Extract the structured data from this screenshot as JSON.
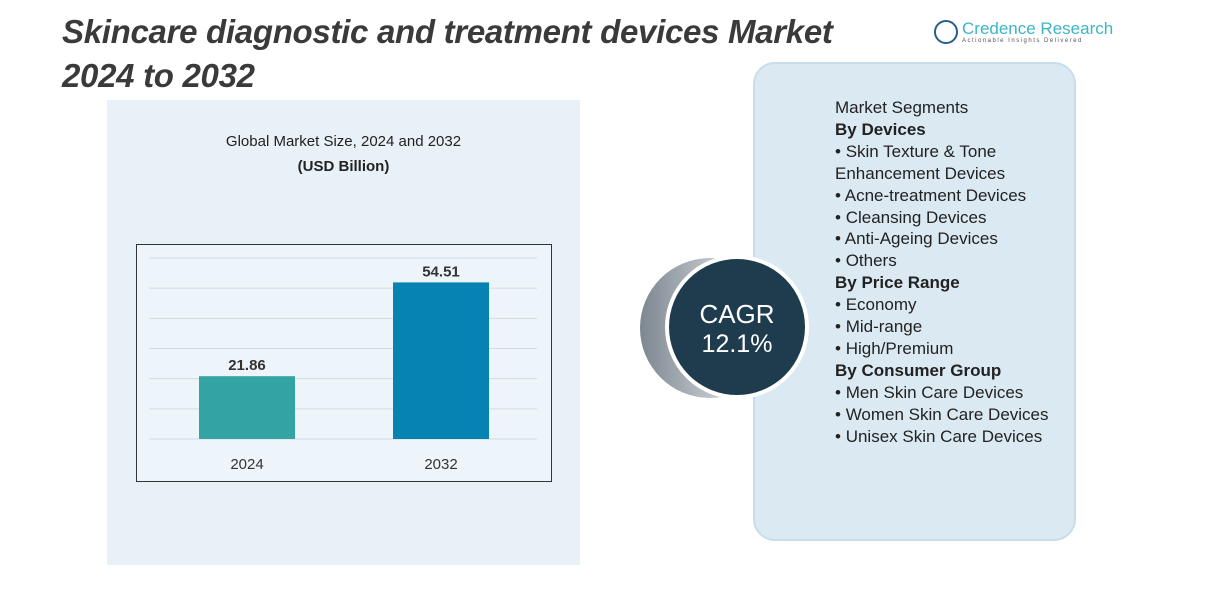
{
  "title": [
    "Skincare diagnostic and treatment devices Market",
    "2024 to 2032"
  ],
  "logo": {
    "name": "Credence Research",
    "tagline": "Actionable Insights Delivered"
  },
  "chart_data": {
    "type": "bar",
    "title": "Global Market Size, 2024 and 2032",
    "subtitle": "(USD Billion)",
    "categories": [
      "2024",
      "2032"
    ],
    "values": [
      21.86,
      54.51
    ],
    "colors": [
      "#33a3a3",
      "#0683b3"
    ],
    "ylim": [
      0,
      63
    ],
    "grid": true
  },
  "cagr": {
    "label": "CAGR",
    "value": "12.1%"
  },
  "segments": {
    "heading": "Market Segments",
    "groups": [
      {
        "title": "By Devices",
        "items": [
          "Skin Texture & Tone Enhancement Devices",
          "Acne-treatment Devices",
          "Cleansing Devices",
          "Anti-Ageing Devices",
          "Others"
        ]
      },
      {
        "title": "By Price Range",
        "items": [
          "Economy",
          "Mid-range",
          "High/Premium"
        ]
      },
      {
        "title": "By Consumer Group",
        "items": [
          "Men Skin Care Devices",
          "Women Skin Care Devices",
          "Unisex Skin Care Devices"
        ]
      }
    ]
  }
}
